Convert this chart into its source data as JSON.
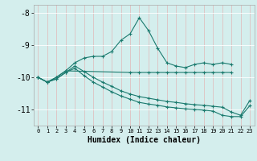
{
  "xlabel": "Humidex (Indice chaleur)",
  "x": [
    0,
    1,
    2,
    3,
    4,
    5,
    6,
    7,
    8,
    9,
    10,
    11,
    12,
    13,
    14,
    15,
    16,
    17,
    18,
    19,
    20,
    21,
    22,
    23
  ],
  "s1": [
    -10.0,
    -10.15,
    -10.0,
    -9.8,
    -9.55,
    -9.4,
    -9.35,
    -9.35,
    -9.2,
    -8.85,
    -8.65,
    -8.15,
    -8.55,
    -9.1,
    -9.55,
    -9.65,
    -9.7,
    -9.6,
    -9.55,
    -9.6,
    -9.55,
    -9.6,
    null,
    null
  ],
  "s2": [
    -10.0,
    -10.15,
    -10.0,
    -9.8,
    null,
    null,
    null,
    null,
    null,
    null,
    -9.85,
    -9.85,
    -9.85,
    -9.85,
    -9.85,
    -9.85,
    -9.85,
    -9.85,
    -9.85,
    -9.85,
    -9.85,
    -9.85,
    null,
    null
  ],
  "s3": [
    -10.0,
    -10.15,
    -10.05,
    -9.85,
    -9.65,
    -9.82,
    -10.0,
    -10.15,
    -10.28,
    -10.42,
    -10.52,
    -10.6,
    -10.65,
    -10.7,
    -10.75,
    -10.78,
    -10.82,
    -10.85,
    -10.87,
    -10.9,
    -10.93,
    -11.08,
    -11.18,
    -10.72
  ],
  "s4": [
    -10.0,
    -10.15,
    -10.05,
    -9.85,
    -9.72,
    -9.95,
    -10.15,
    -10.3,
    -10.45,
    -10.58,
    -10.68,
    -10.78,
    -10.83,
    -10.87,
    -10.92,
    -10.95,
    -10.98,
    -11.0,
    -11.02,
    -11.05,
    -11.18,
    -11.22,
    -11.22,
    -10.88
  ],
  "color": "#1a7a6e",
  "bg_color": "#d4eeed",
  "grid_color": "#ffffff",
  "ylim": [
    -11.5,
    -7.75
  ],
  "yticks": [
    -8,
    -9,
    -10,
    -11
  ],
  "xticks": [
    0,
    1,
    2,
    3,
    4,
    5,
    6,
    7,
    8,
    9,
    10,
    11,
    12,
    13,
    14,
    15,
    16,
    17,
    18,
    19,
    20,
    21,
    22,
    23
  ]
}
